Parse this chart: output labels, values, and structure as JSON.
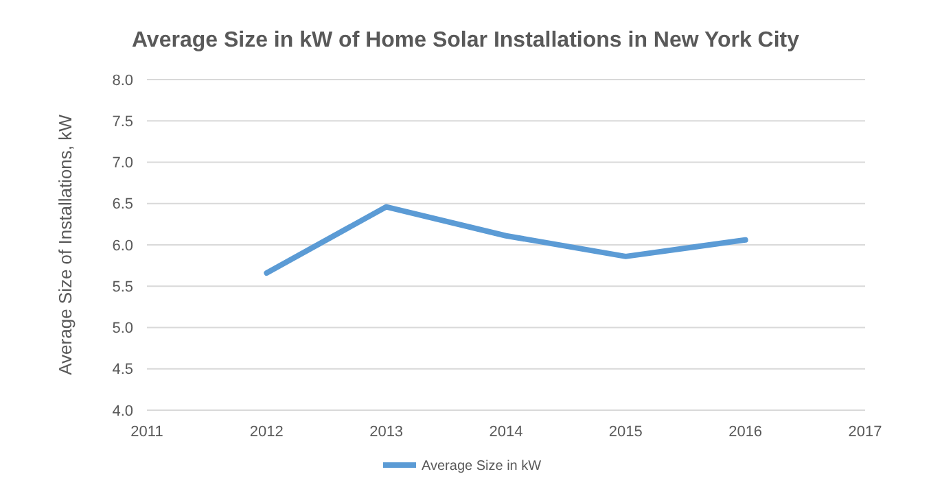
{
  "chart_data": {
    "type": "line",
    "title": "Average Size in kW of Home Solar Installations in New York City",
    "ylabel": "Average Size of Installations, kW",
    "x": [
      2012,
      2013,
      2014,
      2015,
      2016
    ],
    "series": [
      {
        "name": "Average Size in kW",
        "color": "#5b9bd5",
        "values": [
          5.66,
          6.46,
          6.11,
          5.86,
          6.06
        ]
      }
    ],
    "xlim": [
      2011,
      2017
    ],
    "xticks": [
      2011,
      2012,
      2013,
      2014,
      2015,
      2016,
      2017
    ],
    "ylim": [
      4,
      8
    ],
    "yticks": [
      {
        "value": 4,
        "label": "4.0"
      },
      {
        "value": 4.5,
        "label": "4.5"
      },
      {
        "value": 5,
        "label": "5.0"
      },
      {
        "value": 5.5,
        "label": "5.5"
      },
      {
        "value": 6,
        "label": "6.0"
      },
      {
        "value": 6.5,
        "label": "6.5"
      },
      {
        "value": 7,
        "label": "7.0"
      },
      {
        "value": 7.5,
        "label": "7.5"
      },
      {
        "value": 8,
        "label": "8.0"
      }
    ],
    "grid": "y",
    "legend": "bottom",
    "marker": "none",
    "line_style": "solid"
  }
}
